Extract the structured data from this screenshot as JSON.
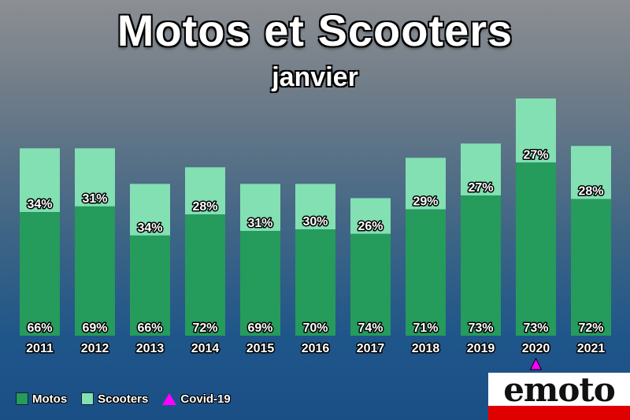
{
  "title": "Motos et Scooters",
  "subtitle": "janvier",
  "colors": {
    "motos": "#259b5c",
    "scooters": "#82e0b2",
    "covid": "#ff00ff"
  },
  "legend": [
    {
      "label": "Motos",
      "color": "#259b5c",
      "shape": "square"
    },
    {
      "label": "Scooters",
      "color": "#82e0b2",
      "shape": "square"
    },
    {
      "label": "Covid-19",
      "color": "#ff00ff",
      "shape": "triangle"
    }
  ],
  "logo": {
    "text": "emoto"
  },
  "chart_data": {
    "type": "bar",
    "stacked": true,
    "title": "Motos et Scooters",
    "subtitle": "janvier",
    "categories": [
      "2011",
      "2012",
      "2013",
      "2014",
      "2015",
      "2016",
      "2017",
      "2018",
      "2019",
      "2020",
      "2021"
    ],
    "series": [
      {
        "name": "Motos",
        "percent_labels": [
          "66%",
          "69%",
          "66%",
          "72%",
          "69%",
          "70%",
          "74%",
          "71%",
          "73%",
          "73%",
          "72%"
        ]
      },
      {
        "name": "Scooters",
        "percent_labels": [
          "34%",
          "31%",
          "34%",
          "28%",
          "31%",
          "30%",
          "26%",
          "29%",
          "27%",
          "27%",
          "28%"
        ]
      }
    ],
    "totals_relative": [
      0.79,
      0.79,
      0.64,
      0.71,
      0.64,
      0.64,
      0.58,
      0.75,
      0.81,
      1.0,
      0.8
    ],
    "annotations": [
      {
        "category": "2020",
        "marker": "triangle",
        "label": "Covid-19"
      }
    ],
    "legend_position": "bottom-left",
    "grid": false
  }
}
